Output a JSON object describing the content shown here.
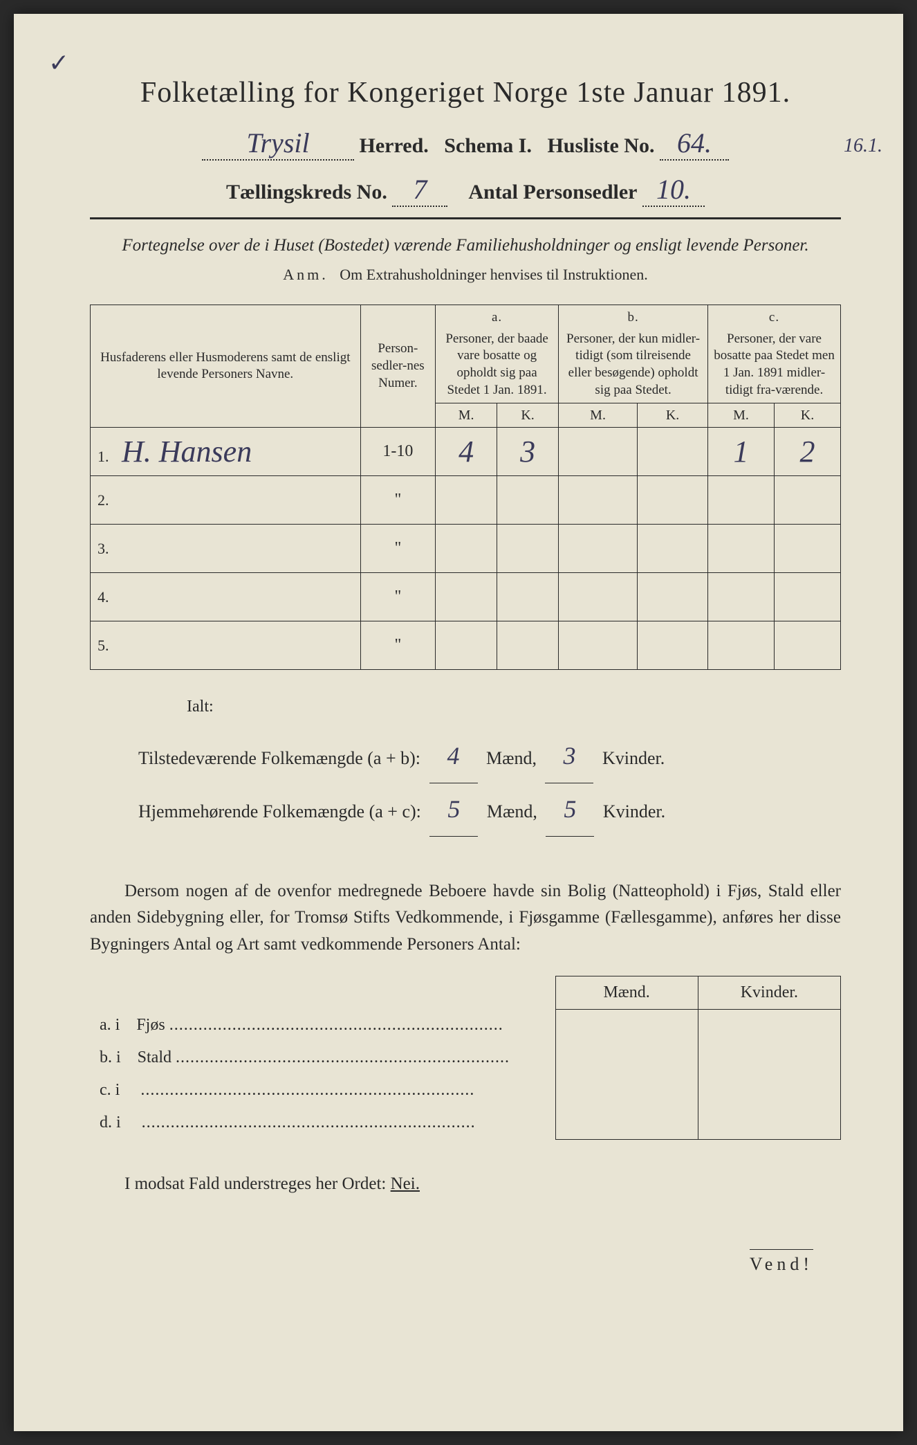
{
  "header": {
    "title": "Folketælling for Kongeriget Norge 1ste Januar 1891.",
    "herred_value": "Trysil",
    "herred_label": "Herred.",
    "schema_label": "Schema I.",
    "husliste_label": "Husliste No.",
    "husliste_value": "64.",
    "margin_note": "16.1.",
    "kreds_label": "Tællingskreds No.",
    "kreds_value": "7",
    "antal_label": "Antal Personsedler",
    "antal_value": "10.",
    "tick": "✓"
  },
  "subtitle": {
    "line1": "Fortegnelse over de i Huset (Bostedet) værende Familiehusholdninger og ensligt levende Personer.",
    "line2_prefix": "Anm.",
    "line2_rest": "Om Extrahusholdninger henvises til Instruktionen."
  },
  "table": {
    "col_name": "Husfaderens eller Husmoderens samt de ensligt levende Personers Navne.",
    "col_numer": "Person-sedler-nes Numer.",
    "col_a_label": "a.",
    "col_a": "Personer, der baade vare bosatte og opholdt sig paa Stedet 1 Jan. 1891.",
    "col_b_label": "b.",
    "col_b": "Personer, der kun midler-tidigt (som tilreisende eller besøgende) opholdt sig paa Stedet.",
    "col_c_label": "c.",
    "col_c": "Personer, der vare bosatte paa Stedet men 1 Jan. 1891 midler-tidigt fra-værende.",
    "m": "M.",
    "k": "K.",
    "rows": [
      {
        "num": "1.",
        "name": "H. Hansen",
        "numer": "1-10",
        "a_m": "4",
        "a_k": "3",
        "b_m": "",
        "b_k": "",
        "c_m": "1",
        "c_k": "2"
      },
      {
        "num": "2.",
        "name": "",
        "numer": "\"",
        "a_m": "",
        "a_k": "",
        "b_m": "",
        "b_k": "",
        "c_m": "",
        "c_k": ""
      },
      {
        "num": "3.",
        "name": "",
        "numer": "\"",
        "a_m": "",
        "a_k": "",
        "b_m": "",
        "b_k": "",
        "c_m": "",
        "c_k": ""
      },
      {
        "num": "4.",
        "name": "",
        "numer": "\"",
        "a_m": "",
        "a_k": "",
        "b_m": "",
        "b_k": "",
        "c_m": "",
        "c_k": ""
      },
      {
        "num": "5.",
        "name": "",
        "numer": "\"",
        "a_m": "",
        "a_k": "",
        "b_m": "",
        "b_k": "",
        "c_m": "",
        "c_k": ""
      }
    ]
  },
  "ialt": "Ialt:",
  "totals": {
    "line1_label": "Tilstedeværende Folkemængde (a + b):",
    "line1_m": "4",
    "line1_k": "3",
    "line2_label": "Hjemmehørende Folkemængde (a + c):",
    "line2_m": "5",
    "line2_k": "5",
    "maend": "Mænd,",
    "kvinder": "Kvinder."
  },
  "body": {
    "para": "Dersom nogen af de ovenfor medregnede Beboere havde sin Bolig (Natteophold) i Fjøs, Stald eller anden Sidebygning eller, for Tromsø Stifts Vedkommende, i Fjøsgamme (Fællesgamme), anføres her disse Bygningers Antal og Art samt vedkommende Personers Antal:"
  },
  "subtable": {
    "maend": "Mænd.",
    "kvinder": "Kvinder.",
    "rows": [
      {
        "label": "a. i",
        "text": "Fjøs"
      },
      {
        "label": "b. i",
        "text": "Stald"
      },
      {
        "label": "c. i",
        "text": ""
      },
      {
        "label": "d. i",
        "text": ""
      }
    ]
  },
  "final": {
    "text_pre": "I modsat Fald understreges her Ordet: ",
    "nei": "Nei."
  },
  "vend": "Vend!",
  "colors": {
    "paper": "#e8e4d4",
    "ink": "#2a2a2a",
    "handwriting": "#3a3a5a"
  }
}
